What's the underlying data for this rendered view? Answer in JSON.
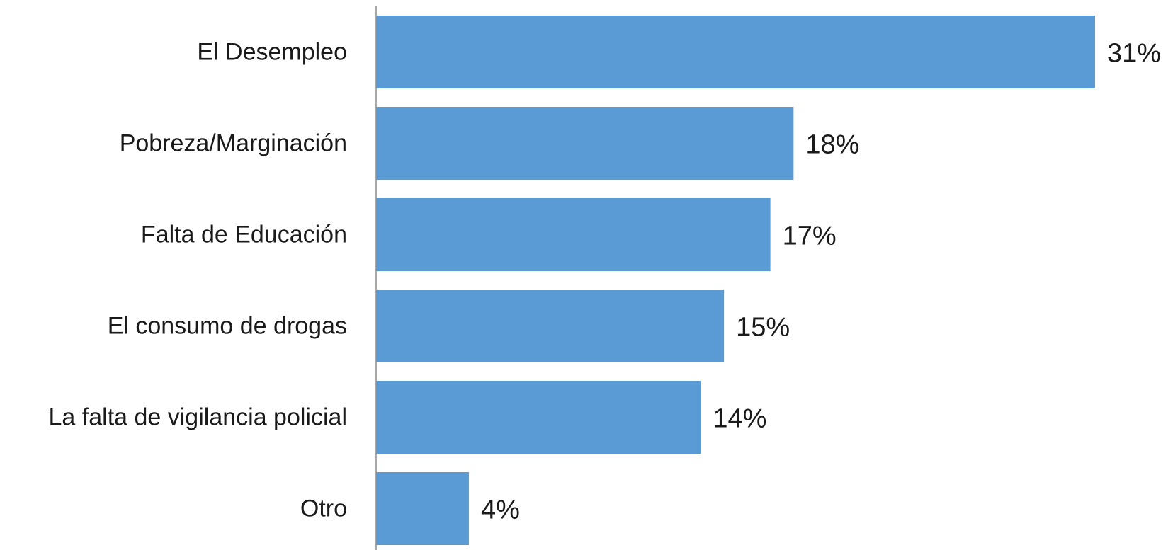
{
  "chart_data": {
    "type": "bar",
    "orientation": "horizontal",
    "categories": [
      "El Desempleo",
      "Pobreza/Marginación",
      "Falta de Educación",
      "El consumo de drogas",
      "La falta de vigilancia policial",
      "Otro"
    ],
    "values": [
      31,
      18,
      17,
      15,
      14,
      4
    ],
    "value_labels": [
      "31%",
      "18%",
      "17%",
      "15%",
      "14%",
      "4%"
    ],
    "title": "",
    "xlabel": "",
    "ylabel": "",
    "xlim": [
      0,
      31
    ],
    "grid": false,
    "legend": "none",
    "bar_color": "#5b9bd5"
  }
}
